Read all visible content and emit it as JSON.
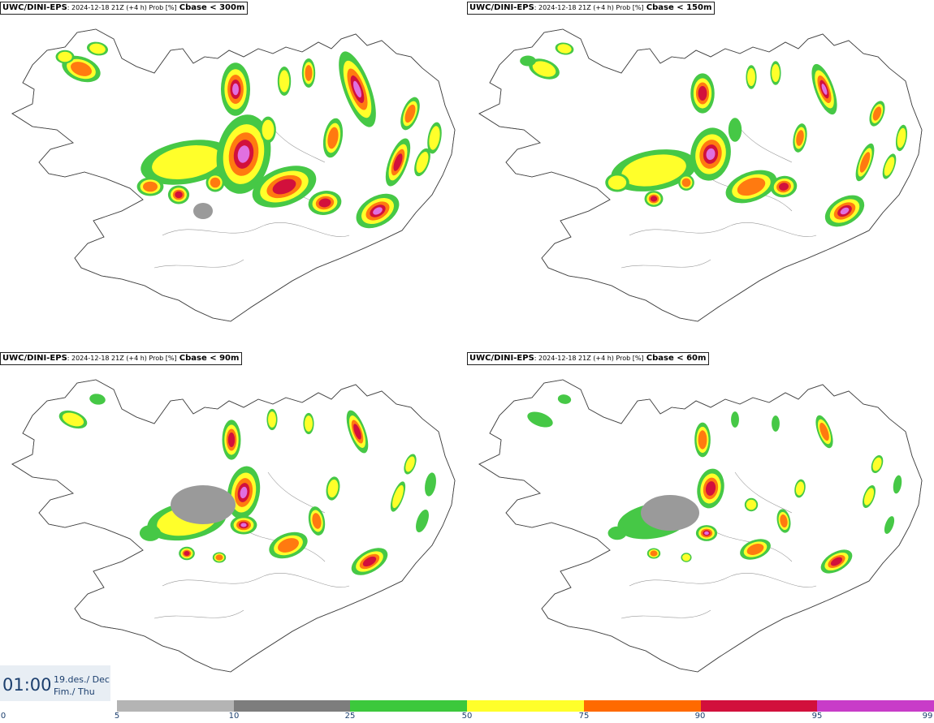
{
  "panels": [
    {
      "model": "UWC/DINI-EPS",
      "meta": ": 2024-12-18 21Z (+4 h) Prob [%]",
      "param": "Cbase < 300m"
    },
    {
      "model": "UWC/DINI-EPS",
      "meta": ": 2024-12-18 21Z (+4 h) Prob [%]",
      "param": "Cbase < 150m"
    },
    {
      "model": "UWC/DINI-EPS",
      "meta": ": 2024-12-18 21Z (+4 h) Prob [%]",
      "param": "Cbase < 90m"
    },
    {
      "model": "UWC/DINI-EPS",
      "meta": ": 2024-12-18 21Z (+4 h) Prob [%]",
      "param": "Cbase < 60m"
    }
  ],
  "valid_time": {
    "time": "01:00",
    "date_line1": "19.des./ Dec",
    "date_line2": "Fim./ Thu"
  },
  "legend": {
    "ticks": [
      "0",
      "5",
      "10",
      "25",
      "50",
      "75",
      "90",
      "95",
      "99"
    ],
    "colors": [
      "#b4b4b4",
      "#7d7d7d",
      "#3cc83c",
      "#ffff2a",
      "#ff6a00",
      "#d2103c",
      "#c83cc8"
    ]
  },
  "map_colors": {
    "land_outline": "#444444",
    "low": "#9a9a9a",
    "p25": "#46c846",
    "p50": "#ffff2a",
    "p75": "#ff7a10",
    "p90": "#d2103c",
    "p95": "#e070e0"
  }
}
